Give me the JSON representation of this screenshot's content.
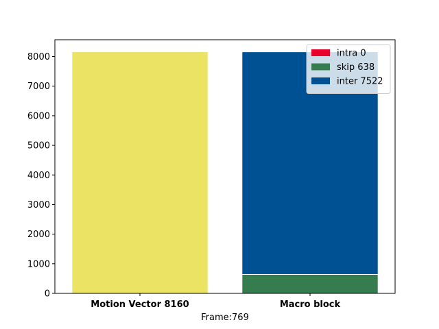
{
  "chart_data": {
    "type": "bar",
    "xlabel": "Frame:769",
    "ylabel": "",
    "ylim": [
      0,
      8568
    ],
    "yticks": [
      0,
      1000,
      2000,
      3000,
      4000,
      5000,
      6000,
      7000,
      8000
    ],
    "categories": [
      "Motion Vector 8160",
      "Macro block"
    ],
    "bars": [
      {
        "category": "Motion Vector 8160",
        "segments": [
          {
            "name": "motion vector",
            "value": 8160,
            "color": "#ebe364"
          }
        ]
      },
      {
        "category": "Macro block",
        "segments": [
          {
            "name": "intra 0",
            "value": 0,
            "color": "#e8002a"
          },
          {
            "name": "skip 638",
            "value": 638,
            "color": "#357c4e"
          },
          {
            "name": "inter 7522",
            "value": 7522,
            "color": "#005193"
          }
        ]
      }
    ],
    "legend": {
      "placement": "top-right",
      "entries": [
        {
          "label": "intra 0",
          "color": "#e8002a"
        },
        {
          "label": "skip 638",
          "color": "#357c4e"
        },
        {
          "label": "inter 7522",
          "color": "#005193"
        }
      ]
    },
    "grid": false
  }
}
